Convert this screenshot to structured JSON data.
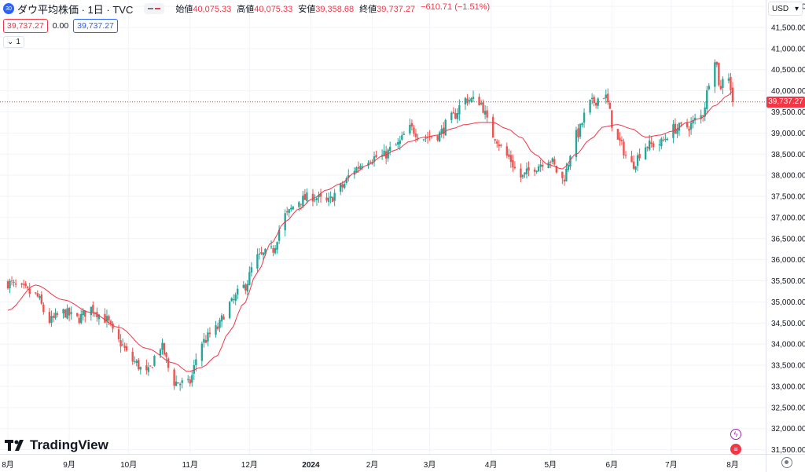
{
  "header": {
    "symbol_badge": "30",
    "title": "ダウ平均株価 · 1日 · TVC",
    "ohlc": [
      {
        "key": "始値",
        "value": "40,075.33"
      },
      {
        "key": "高値",
        "value": "40,075.33"
      },
      {
        "key": "安値",
        "value": "39,358.68"
      },
      {
        "key": "終値",
        "value": "39,737.27"
      }
    ],
    "change": "−610.71 (−1.51%)"
  },
  "price_boxes": {
    "sell": "39,737.27",
    "spread": "0.00",
    "buy": "39,737.27"
  },
  "collapse_label": "1",
  "currency": "USD",
  "last_price_label": "39,737.27",
  "brand": "TradingView",
  "colors": {
    "up": "#26a69a",
    "down": "#ef5350",
    "ma": "#f23645",
    "grid": "#f0f3fa",
    "axis_text": "#131722"
  },
  "chart_data": {
    "type": "candlestick",
    "y_ticks": [
      "31,500.00",
      "32,000.00",
      "32,500.00",
      "33,000.00",
      "33,500.00",
      "34,000.00",
      "34,500.00",
      "35,000.00",
      "35,500.00",
      "36,000.00",
      "36,500.00",
      "37,000.00",
      "37,500.00",
      "38,000.00",
      "38,500.00",
      "39,000.00",
      "39,500.00",
      "40,000.00",
      "40,500.00",
      "41,000.00",
      "41,500.00",
      "42,000.00"
    ],
    "ylim": [
      31400,
      42150
    ],
    "x_ticks": [
      {
        "label": "8月",
        "day": 0
      },
      {
        "label": "9月",
        "day": 31
      },
      {
        "label": "10月",
        "day": 61
      },
      {
        "label": "11月",
        "day": 92
      },
      {
        "label": "12月",
        "day": 122
      },
      {
        "label": "2024",
        "day": 153
      },
      {
        "label": "2月",
        "day": 184
      },
      {
        "label": "3月",
        "day": 213
      },
      {
        "label": "4月",
        "day": 244
      },
      {
        "label": "5月",
        "day": 274
      },
      {
        "label": "6月",
        "day": 305
      },
      {
        "label": "7月",
        "day": 335
      },
      {
        "label": "8月",
        "day": 366
      }
    ],
    "close_anchors": [
      [
        0,
        35450
      ],
      [
        7,
        35300
      ],
      [
        14,
        35150
      ],
      [
        21,
        34550
      ],
      [
        28,
        34750
      ],
      [
        35,
        34600
      ],
      [
        42,
        34850
      ],
      [
        49,
        34600
      ],
      [
        56,
        34050
      ],
      [
        63,
        33600
      ],
      [
        70,
        33300
      ],
      [
        77,
        33950
      ],
      [
        84,
        33100
      ],
      [
        91,
        33050
      ],
      [
        98,
        34050
      ],
      [
        105,
        34350
      ],
      [
        112,
        34950
      ],
      [
        119,
        35350
      ],
      [
        126,
        36050
      ],
      [
        133,
        36200
      ],
      [
        140,
        37050
      ],
      [
        147,
        37400
      ],
      [
        154,
        37500
      ],
      [
        161,
        37350
      ],
      [
        168,
        37700
      ],
      [
        175,
        38150
      ],
      [
        182,
        38400
      ],
      [
        189,
        38450
      ],
      [
        196,
        38700
      ],
      [
        203,
        39100
      ],
      [
        210,
        38900
      ],
      [
        217,
        38950
      ],
      [
        224,
        39350
      ],
      [
        231,
        39800
      ],
      [
        238,
        39750
      ],
      [
        245,
        38950
      ],
      [
        252,
        38450
      ],
      [
        259,
        37950
      ],
      [
        266,
        38200
      ],
      [
        273,
        38400
      ],
      [
        280,
        37900
      ],
      [
        287,
        38950
      ],
      [
        294,
        39700
      ],
      [
        301,
        39900
      ],
      [
        308,
        38800
      ],
      [
        315,
        38250
      ],
      [
        322,
        38700
      ],
      [
        329,
        38750
      ],
      [
        336,
        39100
      ],
      [
        343,
        39150
      ],
      [
        350,
        39400
      ],
      [
        357,
        40800
      ],
      [
        360,
        40000
      ],
      [
        362,
        40700
      ],
      [
        364,
        40350
      ],
      [
        366,
        39737
      ]
    ],
    "ma_anchors": [
      [
        0,
        34800
      ],
      [
        14,
        35400
      ],
      [
        28,
        35050
      ],
      [
        42,
        34750
      ],
      [
        56,
        34400
      ],
      [
        70,
        33900
      ],
      [
        84,
        33550
      ],
      [
        91,
        33350
      ],
      [
        98,
        33450
      ],
      [
        105,
        33700
      ],
      [
        112,
        34300
      ],
      [
        119,
        34950
      ],
      [
        126,
        35700
      ],
      [
        133,
        36400
      ],
      [
        140,
        36900
      ],
      [
        147,
        37200
      ],
      [
        154,
        37450
      ],
      [
        161,
        37650
      ],
      [
        168,
        37800
      ],
      [
        175,
        38050
      ],
      [
        182,
        38250
      ],
      [
        189,
        38450
      ],
      [
        196,
        38600
      ],
      [
        203,
        38800
      ],
      [
        210,
        38900
      ],
      [
        217,
        38950
      ],
      [
        224,
        39100
      ],
      [
        231,
        39200
      ],
      [
        238,
        39250
      ],
      [
        245,
        39250
      ],
      [
        252,
        39100
      ],
      [
        259,
        38900
      ],
      [
        266,
        38500
      ],
      [
        273,
        38250
      ],
      [
        280,
        38150
      ],
      [
        287,
        38500
      ],
      [
        294,
        38850
      ],
      [
        301,
        39150
      ],
      [
        308,
        39200
      ],
      [
        315,
        39100
      ],
      [
        322,
        38900
      ],
      [
        329,
        38950
      ],
      [
        336,
        39050
      ],
      [
        343,
        39250
      ],
      [
        350,
        39350
      ],
      [
        357,
        39650
      ],
      [
        364,
        39900
      ],
      [
        366,
        40000
      ]
    ],
    "ma_label": "",
    "last_close": 39737.27
  }
}
